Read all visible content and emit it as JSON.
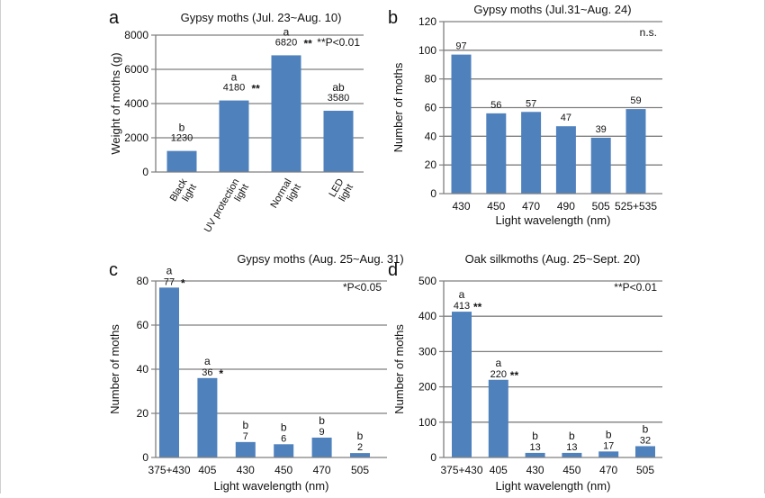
{
  "chart_data": [
    {
      "type": "bar",
      "panel_letter": "a",
      "title": "Gypsy moths (Jul. 23~Aug. 10)",
      "xlabel": "",
      "ylabel": "Weight of moths (g)",
      "categories": [
        "Black light",
        "UV protection light",
        "Normal light",
        "LED light"
      ],
      "values": [
        1230,
        4180,
        6820,
        3580
      ],
      "value_labels": [
        "1230",
        "4180",
        "6820",
        "3580"
      ],
      "letters": [
        "b",
        "a",
        "a",
        "ab"
      ],
      "stars": [
        "",
        "**",
        "**",
        ""
      ],
      "annotation": "**P<0.01",
      "ylim": [
        0,
        8000
      ],
      "yticks": [
        0,
        2000,
        4000,
        6000,
        8000
      ],
      "rotated_xticks": true,
      "grid": true,
      "bar_color": "#4f81bd"
    },
    {
      "type": "bar",
      "panel_letter": "b",
      "title": "Gypsy moths (Jul.31~Aug. 24)",
      "xlabel": "Light wavelength (nm)",
      "ylabel": "Number of moths",
      "categories": [
        "430",
        "450",
        "470",
        "490",
        "505",
        "525+535"
      ],
      "values": [
        97,
        56,
        57,
        47,
        39,
        59
      ],
      "value_labels": [
        "97",
        "56",
        "57",
        "47",
        "39",
        "59"
      ],
      "letters": [
        "",
        "",
        "",
        "",
        "",
        ""
      ],
      "stars": [
        "",
        "",
        "",
        "",
        "",
        ""
      ],
      "annotation": "n.s.",
      "ylim": [
        0,
        120
      ],
      "yticks": [
        0,
        20,
        40,
        60,
        80,
        100,
        120
      ],
      "rotated_xticks": false,
      "grid": true,
      "bar_color": "#4f81bd"
    },
    {
      "type": "bar",
      "panel_letter": "c",
      "title": "Gypsy moths (Aug. 25~Aug. 31)",
      "xlabel": "Light wavelength (nm)",
      "ylabel": "Number of moths",
      "categories": [
        "375+430",
        "405",
        "430",
        "450",
        "470",
        "505"
      ],
      "values": [
        77,
        36,
        7,
        6,
        9,
        2
      ],
      "value_labels": [
        "77",
        "36",
        "7",
        "6",
        "9",
        "2"
      ],
      "letters": [
        "a",
        "a",
        "b",
        "b",
        "b",
        "b"
      ],
      "stars": [
        "*",
        "*",
        "",
        "",
        "",
        ""
      ],
      "annotation": "*P<0.05",
      "ylim": [
        0,
        80
      ],
      "yticks": [
        0,
        20,
        40,
        60,
        80
      ],
      "rotated_xticks": false,
      "grid": true,
      "bar_color": "#4f81bd"
    },
    {
      "type": "bar",
      "panel_letter": "d",
      "title": "Oak silkmoths (Aug. 25~Sept. 20)",
      "xlabel": "Light wavelength (nm)",
      "ylabel": "Number of moths",
      "categories": [
        "375+430",
        "405",
        "430",
        "450",
        "470",
        "505"
      ],
      "values": [
        413,
        220,
        13,
        13,
        17,
        32
      ],
      "value_labels": [
        "413",
        "220",
        "13",
        "13",
        "17",
        "32"
      ],
      "letters": [
        "a",
        "a",
        "b",
        "b",
        "b",
        "b"
      ],
      "stars": [
        "**",
        "**",
        "",
        "",
        "",
        ""
      ],
      "annotation": "**P<0.01",
      "ylim": [
        0,
        500
      ],
      "yticks": [
        0,
        100,
        200,
        300,
        400,
        500
      ],
      "rotated_xticks": false,
      "grid": true,
      "bar_color": "#4f81bd"
    }
  ]
}
